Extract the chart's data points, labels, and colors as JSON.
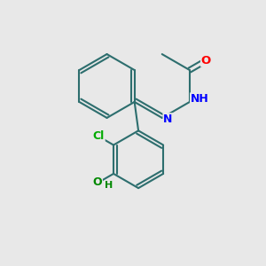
{
  "bg_color": "#e8e8e8",
  "bond_color": "#2d6e6e",
  "atom_colors": {
    "O": "#ff0000",
    "N": "#0000ff",
    "Cl": "#00aa00",
    "OH_green": "#008800",
    "H_blue": "#0000ff",
    "H_green": "#008800"
  },
  "lw": 1.5,
  "fs": 9.5
}
